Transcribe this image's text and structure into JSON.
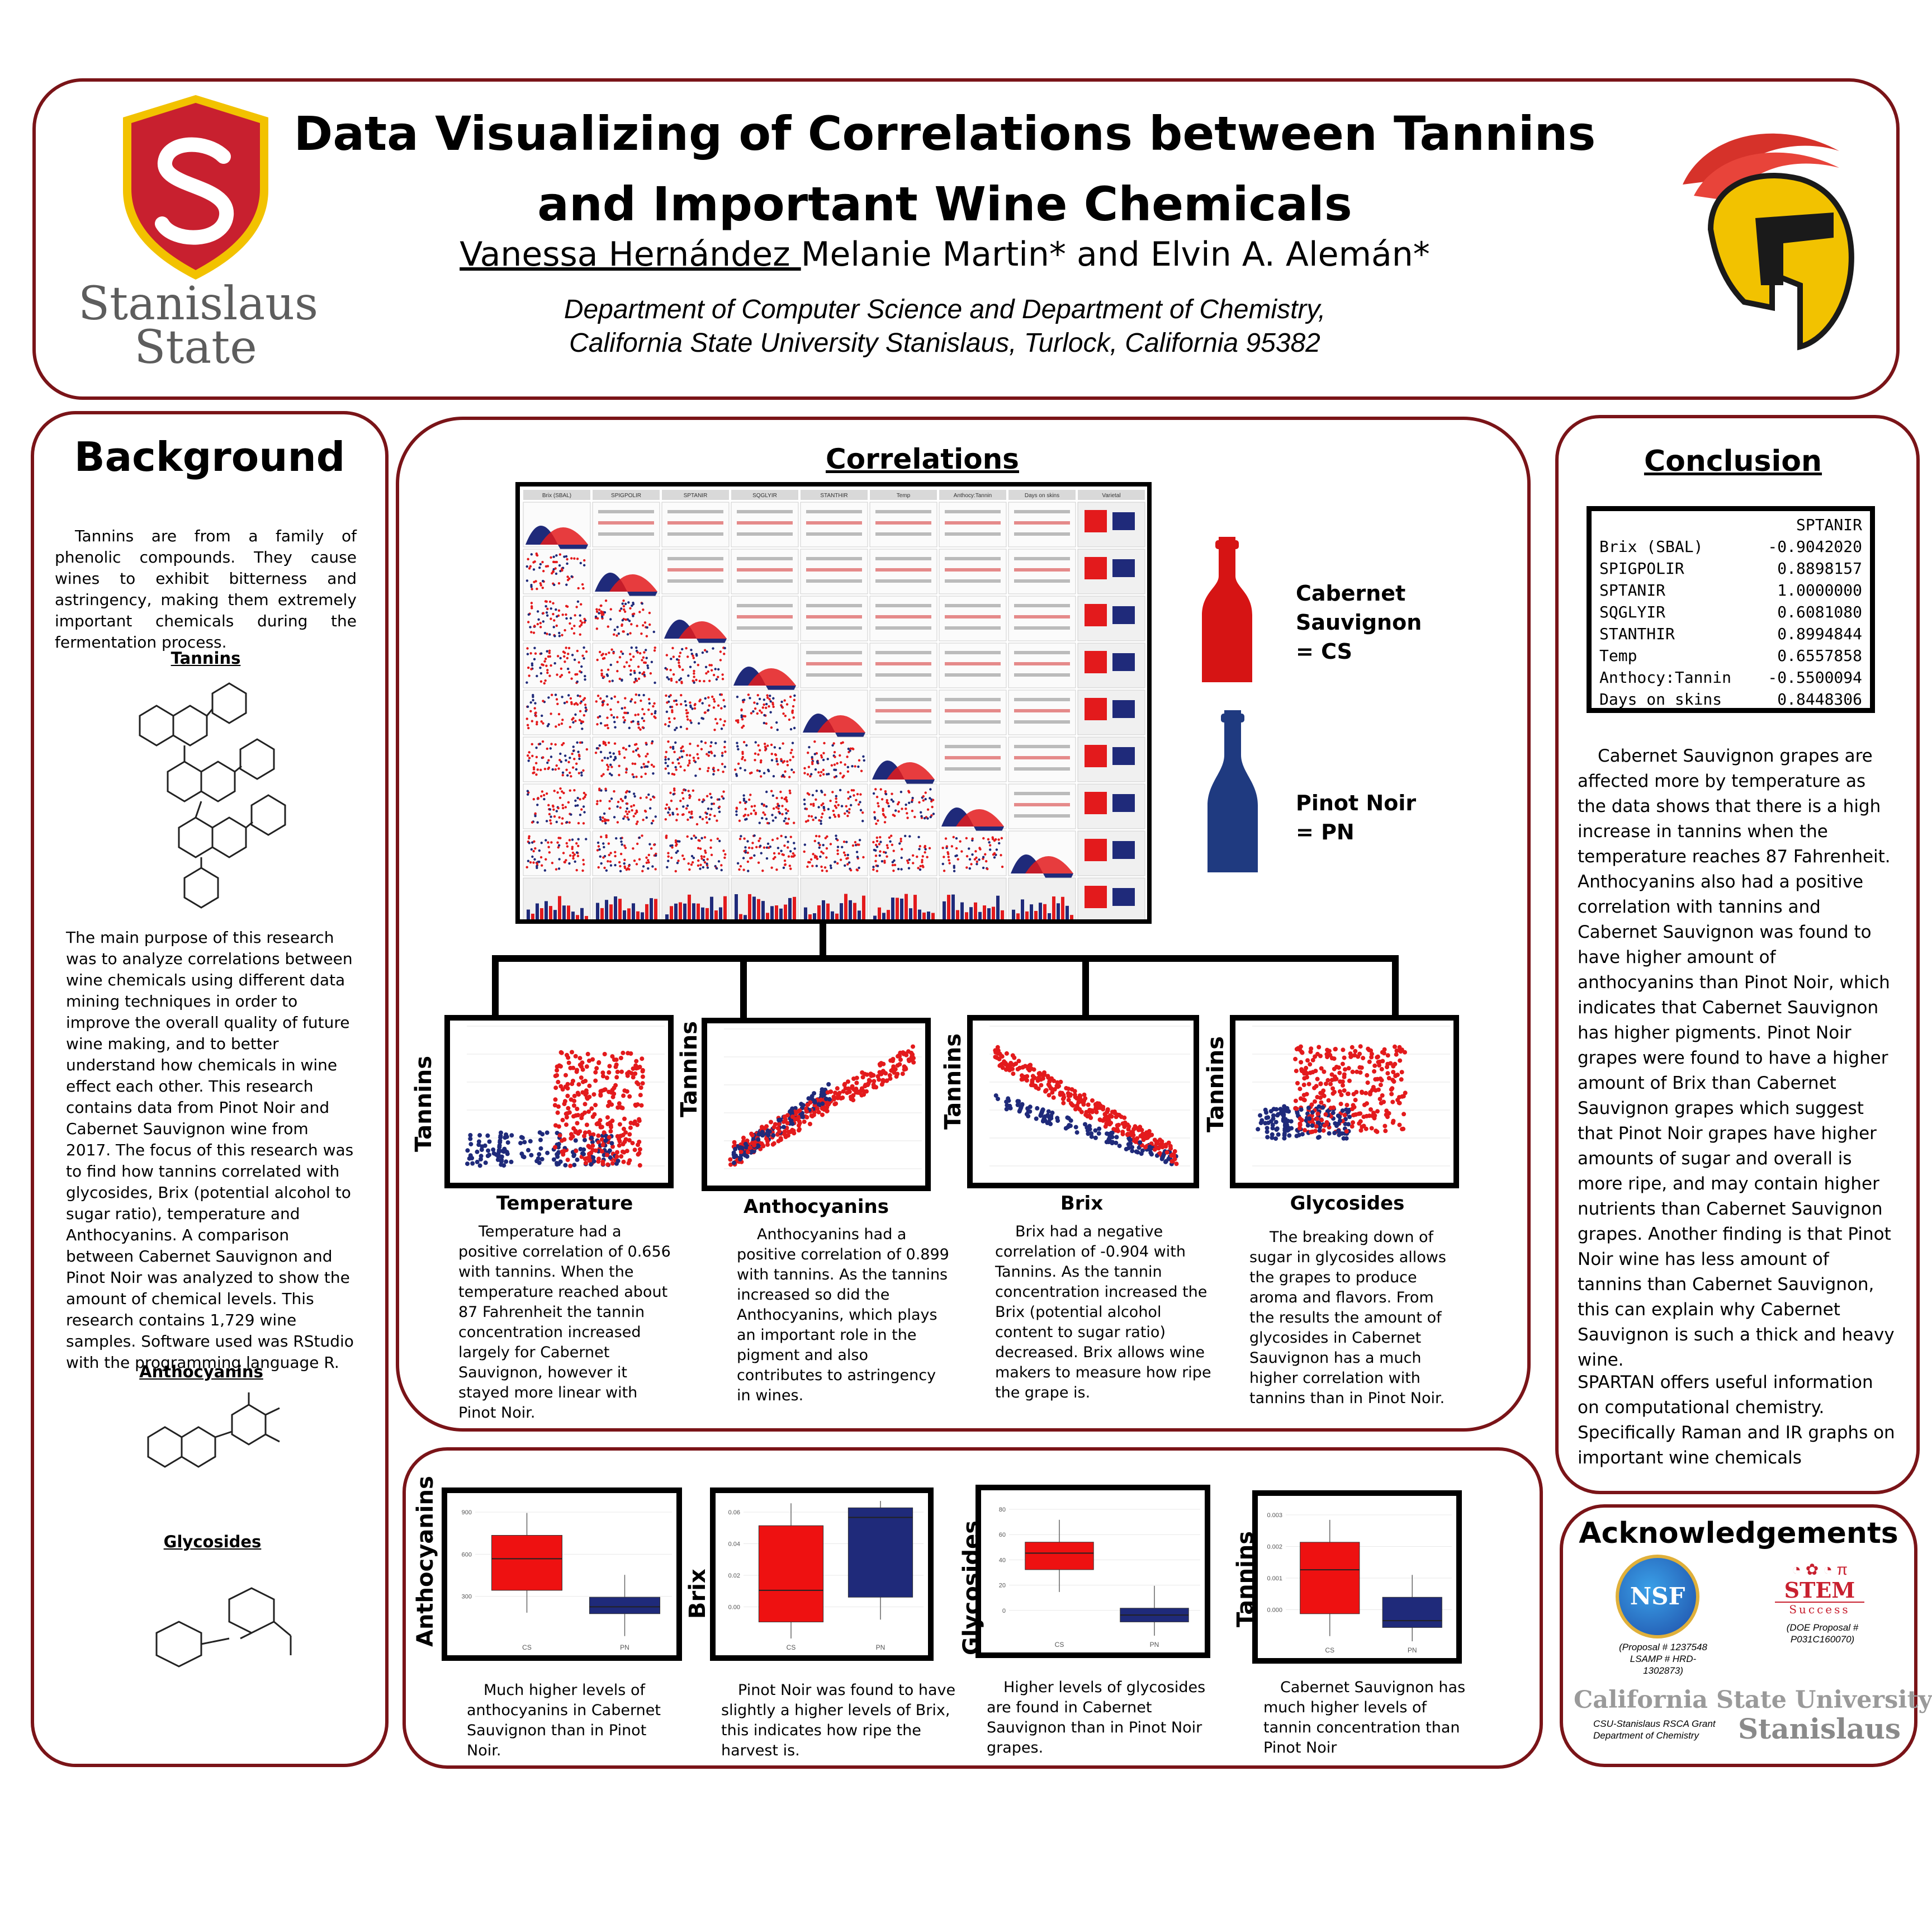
{
  "header": {
    "title": "Data Visualizing of Correlations between Tannins and Important Wine Chemicals",
    "author_presenter": "Vanessa Hernández ",
    "authors_rest": "Melanie Martin* and Elvin A. Alemán*",
    "dept_line1": "Department of Computer Science and Department of Chemistry,",
    "dept_line2": "California State University Stanislaus, Turlock, California 95382",
    "logo_text_line1": "Stanislaus",
    "logo_text_line2": "State"
  },
  "background": {
    "heading": "Background",
    "intro": "Tannins are from a family of phenolic compounds. They cause wines to exhibit bitterness and astringency, making them extremely important chemicals during the fermentation process.",
    "tannins_label": "Tannins",
    "purpose": "The main purpose of this research was to analyze correlations between wine chemicals using different data mining techniques in order to improve the overall quality of future wine making, and to better understand how chemicals in wine effect each other. This research contains data from Pinot Noir and Cabernet Sauvignon wine from 2017. The focus of this research was to find how tannins correlated with glycosides, Brix (potential alcohol to sugar ratio), temperature and Anthocyanins. A comparison between Cabernet Sauvignon and Pinot Noir was analyzed to show the amount of chemical levels. This research contains 1,729 wine samples. Software used was RStudio with the programming language R.",
    "anthocyanins_label": "Anthocyanins",
    "glycosides_label": "Glycosides"
  },
  "correlations": {
    "heading": "Correlations",
    "matrix_headers": [
      "Brix (SBAL)",
      "SPIGPOLIR",
      "SPTANIR",
      "SQGLYIR",
      "STANTHIR",
      "Temp",
      "Anthocy:Tannin",
      "Days on skins",
      "Varietal"
    ],
    "legend": {
      "cs_label": "Cabernet Sauvignon = CS",
      "pn_label": "Pinot Noir = PN"
    },
    "scatters": [
      {
        "xlabel": "Temperature",
        "ylabel": "Tannins",
        "caption": "Temperature had a positive correlation of 0.656 with tannins. When the temperature reached about 87 Fahrenheit the tannin concentration increased largely for Cabernet Sauvignon, however it stayed more linear with Pinot Noir."
      },
      {
        "xlabel": "Anthocyanins",
        "ylabel": "Tannins",
        "caption": "Anthocyanins had a positive correlation of 0.899 with tannins. As the tannins increased so did the Anthocyanins, which plays an important role in the pigment and also contributes to astringency in wines."
      },
      {
        "xlabel": "Brix",
        "ylabel": "Tannins",
        "caption": "Brix had a negative correlation of -0.904 with Tannins. As the tannin concentration increased the Brix (potential alcohol content to sugar ratio) decreased. Brix allows wine makers to measure how ripe the grape is."
      },
      {
        "xlabel": "Glycosides",
        "ylabel": "Tannins",
        "caption": "The breaking down of sugar in glycosides allows the grapes to produce aroma and flavors. From the results the amount of glycosides in Cabernet Sauvignon has a much higher correlation with tannins than in Pinot Noir."
      }
    ]
  },
  "boxplots": [
    {
      "ylabel": "Anthocyanins",
      "caption": "Much higher levels of anthocyanins in Cabernet Sauvignon than in Pinot Noir.",
      "cats": [
        "CS",
        "PN"
      ],
      "ticks": [
        "900",
        "600",
        "300"
      ]
    },
    {
      "ylabel": "Brix",
      "caption": "Pinot Noir was found to have slightly a higher levels of Brix, this indicates how ripe the harvest is.",
      "cats": [
        "CS",
        "PN"
      ],
      "ticks": [
        "0.06",
        "0.04",
        "0.02",
        "0.00"
      ]
    },
    {
      "ylabel": "Glycosides",
      "caption": "Higher levels of glycosides are found in Cabernet Sauvignon than in Pinot Noir grapes.",
      "cats": [
        "CS",
        "PN"
      ],
      "ticks": [
        "80",
        "60",
        "40",
        "20",
        "0"
      ]
    },
    {
      "ylabel": "Tannins",
      "caption": "Cabernet Sauvignon has much higher levels of tannin concentration than Pinot Noir",
      "cats": [
        "CS",
        "PN"
      ],
      "ticks": [
        "0.003",
        "0.002",
        "0.001",
        "0.000"
      ]
    }
  ],
  "conclusion": {
    "heading": "Conclusion",
    "table_header": "SPTANIR",
    "table_rows": [
      {
        "name": "Brix (SBAL)",
        "value": "-0.9042020"
      },
      {
        "name": "SPIGPOLIR",
        "value": "0.8898157"
      },
      {
        "name": "SPTANIR",
        "value": "1.0000000"
      },
      {
        "name": "SQGLYIR",
        "value": "0.6081080"
      },
      {
        "name": "STANTHIR",
        "value": "0.8994844"
      },
      {
        "name": "Temp",
        "value": "0.6557858"
      },
      {
        "name": "Anthocy:Tannin",
        "value": "-0.5500094"
      },
      {
        "name": "Days on skins",
        "value": "0.8448306"
      }
    ],
    "text1": "Cabernet Sauvignon grapes are affected more by temperature as the data shows that there is a high increase in tannins when the temperature reaches 87 Fahrenheit. Anthocyanins also had a positive correlation with tannins and Cabernet Sauvignon was found to have higher amount of anthocyanins than Pinot Noir, which indicates that Cabernet Sauvignon has higher pigments. Pinot Noir grapes were found to have a higher amount of Brix than Cabernet Sauvignon grapes which suggest that Pinot Noir grapes have higher amounts of sugar and overall is more ripe, and may contain higher nutrients than Cabernet Sauvignon grapes. Another finding is that Pinot Noir wine has less amount of tannins than Cabernet Sauvignon, this can explain why Cabernet Sauvignon is such a thick and heavy wine.",
    "text2": "SPARTAN offers useful information on computational chemistry. Specifically Raman and IR graphs on important wine chemicals"
  },
  "acknowledgements": {
    "heading": "Acknowledgements",
    "nsf_logo": "NSF",
    "nsf_note": "(Proposal # 1237548 LSAMP # HRD-1302873)",
    "stem_logo": "STEM",
    "stem_sub": "Success",
    "stem_note": "(DOE Proposal # P031C160070)",
    "csu_line1": "California State University",
    "csu_line2": "Stanislaus",
    "grant_note": "CSU-Stanislaus RSCA Grant Department of Chemistry"
  },
  "colors": {
    "border": "#7a1418",
    "cs": "#e31a1c",
    "pn": "#1f2a7a",
    "gold": "#f2c200"
  }
}
